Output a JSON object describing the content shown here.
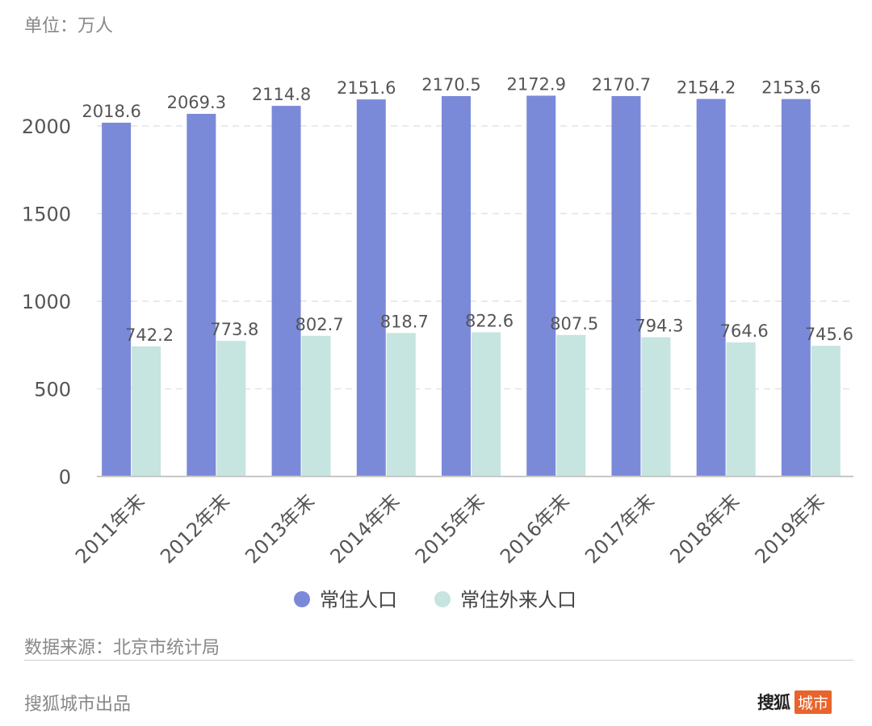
{
  "unit_label": "单位：万人",
  "source_label": "数据来源：北京市统计局",
  "producer_label": "搜狐城市出品",
  "logo": {
    "part_a": "搜狐",
    "part_b": "城市"
  },
  "colors": {
    "series_0": "#7b8ad8",
    "series_1": "#c6e4e0",
    "grid": "#e3e3e3",
    "axis": "#c8c8c8",
    "text": "#555555"
  },
  "chart_data": {
    "type": "bar",
    "categories": [
      "2011年末",
      "2012年末",
      "2013年末",
      "2014年末",
      "2015年末",
      "2016年末",
      "2017年末",
      "2018年末",
      "2019年末"
    ],
    "series": [
      {
        "name": "常住人口",
        "values": [
          2018.6,
          2069.3,
          2114.8,
          2151.6,
          2170.5,
          2172.9,
          2170.7,
          2154.2,
          2153.6
        ]
      },
      {
        "name": "常住外来人口",
        "values": [
          742.2,
          773.8,
          802.7,
          818.7,
          822.6,
          807.5,
          794.3,
          764.6,
          745.6
        ]
      }
    ],
    "yticks": [
      0,
      500,
      1000,
      1500,
      2000
    ],
    "ylim": [
      0,
      2000
    ],
    "grid": "dashed horizontal",
    "legend": "bottom-center"
  }
}
